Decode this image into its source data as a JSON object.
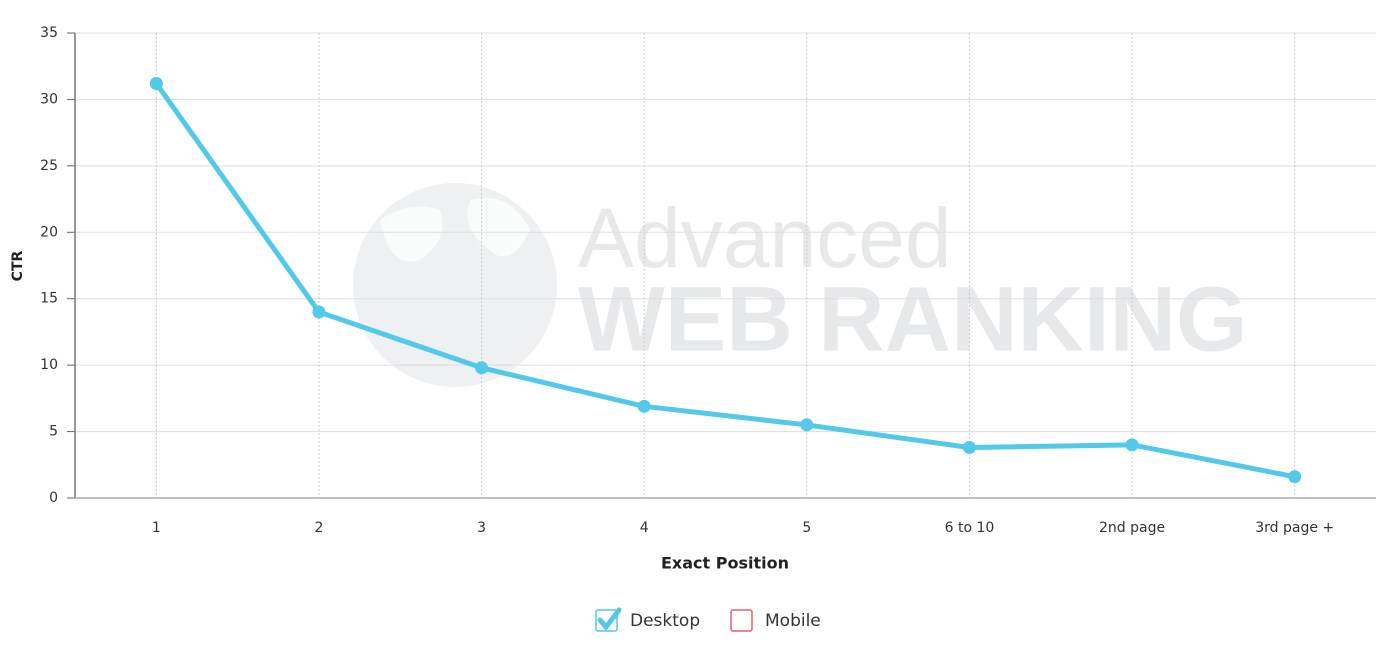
{
  "chart_data": {
    "type": "line",
    "categories": [
      "1",
      "2",
      "3",
      "4",
      "5",
      "6 to 10",
      "2nd page",
      "3rd page +"
    ],
    "series": [
      {
        "name": "Desktop",
        "color": "#52c9e8",
        "visible": true,
        "values": [
          31.2,
          14.0,
          9.8,
          6.9,
          5.5,
          3.8,
          4.0,
          1.6
        ]
      },
      {
        "name": "Mobile",
        "color": "#e8606b",
        "visible": false,
        "values": [
          null,
          null,
          null,
          null,
          null,
          null,
          null,
          null
        ]
      }
    ],
    "xlabel": "Exact Position",
    "ylabel": "CTR",
    "ylim": [
      0,
      35
    ],
    "yticks": [
      0,
      5,
      10,
      15,
      20,
      25,
      30,
      35
    ],
    "grid": true,
    "legend": "bottom",
    "watermark": [
      "Advanced",
      "WEB RANKING"
    ]
  }
}
